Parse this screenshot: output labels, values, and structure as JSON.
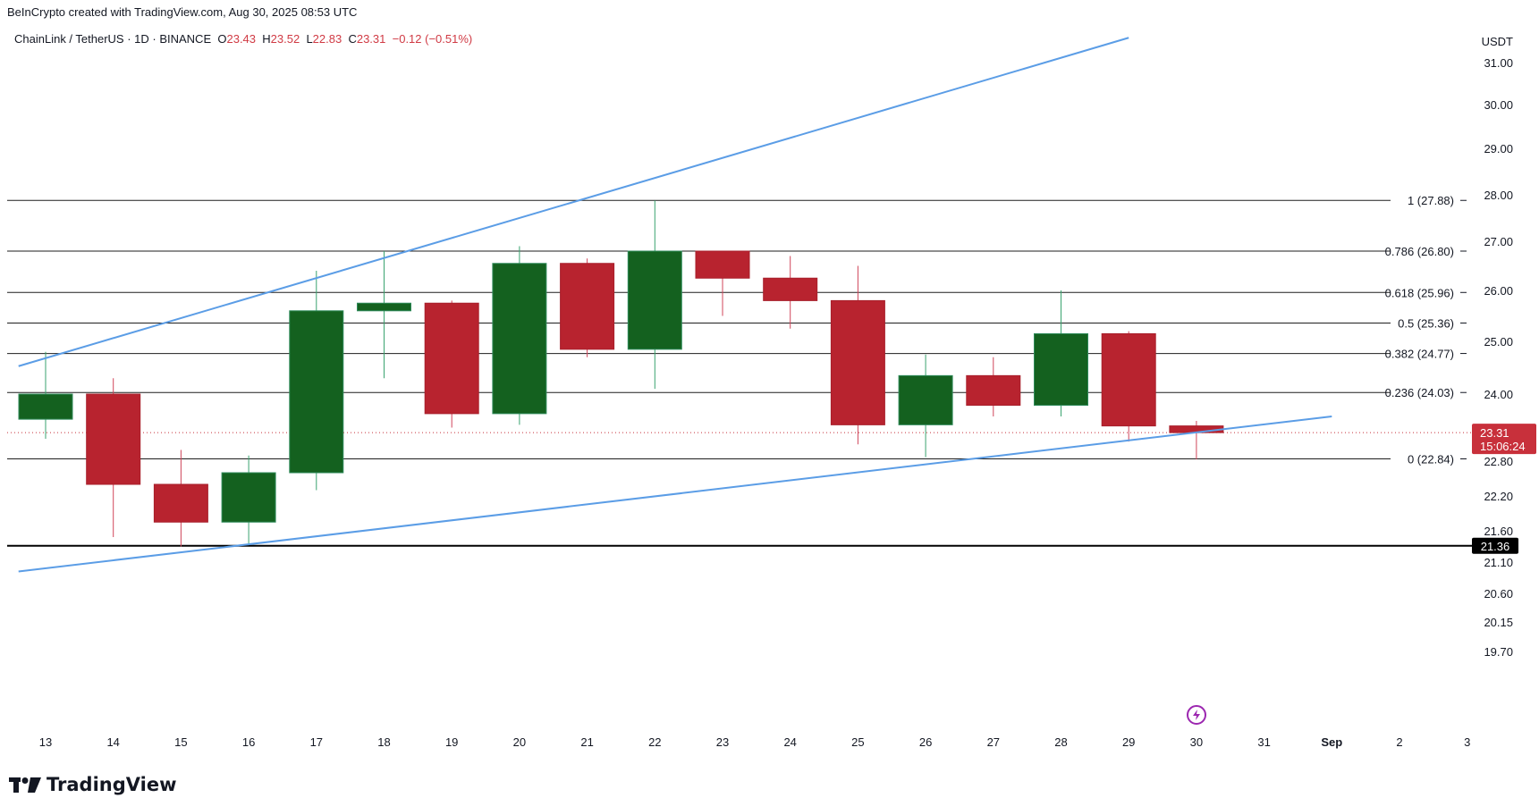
{
  "header": {
    "attribution": "BeInCrypto created with TradingView.com, Aug 30, 2025 08:53 UTC"
  },
  "legend": {
    "symbol": "ChainLink / TetherUS · 1D · BINANCE",
    "open_label": "O",
    "open_value": "23.43",
    "high_label": "H",
    "high_value": "23.52",
    "low_label": "L",
    "low_value": "22.83",
    "close_label": "C",
    "close_value": "23.31",
    "change": "−0.12 (−0.51%)"
  },
  "footer": {
    "brand": "TradingView"
  },
  "colors": {
    "up": "#14611f",
    "down": "#b8232f",
    "trendline": "#5b9de6",
    "fib_line": "#1e1e1e",
    "support_line": "#000000",
    "last_price": "#c8303b"
  },
  "chart_data": {
    "type": "candlestick",
    "currency": "USDT",
    "y_ticks": [
      "31.00",
      "30.00",
      "29.00",
      "28.00",
      "27.00",
      "26.00",
      "25.00",
      "24.00",
      "22.80",
      "22.20",
      "21.60",
      "21.10",
      "20.60",
      "20.15",
      "19.70"
    ],
    "x_ticks": [
      "13",
      "14",
      "15",
      "16",
      "17",
      "18",
      "19",
      "20",
      "21",
      "22",
      "23",
      "24",
      "25",
      "26",
      "27",
      "28",
      "29",
      "30",
      "31",
      "Sep",
      "2",
      "3"
    ],
    "candles": [
      {
        "day": "13",
        "open": 23.55,
        "high": 24.8,
        "low": 23.2,
        "close": 24.0
      },
      {
        "day": "14",
        "open": 24.0,
        "high": 24.3,
        "low": 21.5,
        "close": 22.4
      },
      {
        "day": "15",
        "open": 22.4,
        "high": 23.0,
        "low": 21.35,
        "close": 21.75
      },
      {
        "day": "16",
        "open": 21.75,
        "high": 22.9,
        "low": 21.4,
        "close": 22.6
      },
      {
        "day": "17",
        "open": 22.6,
        "high": 26.4,
        "low": 22.3,
        "close": 25.6
      },
      {
        "day": "18",
        "open": 25.6,
        "high": 26.8,
        "low": 24.3,
        "close": 25.75
      },
      {
        "day": "19",
        "open": 25.75,
        "high": 25.8,
        "low": 23.4,
        "close": 23.65
      },
      {
        "day": "20",
        "open": 23.65,
        "high": 26.9,
        "low": 23.45,
        "close": 26.55
      },
      {
        "day": "21",
        "open": 26.55,
        "high": 26.65,
        "low": 24.7,
        "close": 24.85
      },
      {
        "day": "22",
        "open": 24.85,
        "high": 27.88,
        "low": 24.1,
        "close": 26.8
      },
      {
        "day": "23",
        "open": 26.8,
        "high": 26.8,
        "low": 25.5,
        "close": 26.25
      },
      {
        "day": "24",
        "open": 26.25,
        "high": 26.7,
        "low": 25.25,
        "close": 25.8
      },
      {
        "day": "25",
        "open": 25.8,
        "high": 26.5,
        "low": 23.1,
        "close": 23.45
      },
      {
        "day": "26",
        "open": 23.45,
        "high": 24.75,
        "low": 22.87,
        "close": 24.35
      },
      {
        "day": "27",
        "open": 24.35,
        "high": 24.7,
        "low": 23.6,
        "close": 23.8
      },
      {
        "day": "28",
        "open": 23.8,
        "high": 26.0,
        "low": 23.6,
        "close": 25.15
      },
      {
        "day": "29",
        "open": 25.15,
        "high": 25.2,
        "low": 23.15,
        "close": 23.43
      },
      {
        "day": "30",
        "open": 23.43,
        "high": 23.52,
        "low": 22.83,
        "close": 23.31
      }
    ],
    "fib_levels": [
      {
        "label": "1 (27.88)",
        "value": 27.88
      },
      {
        "label": "0.786 (26.80)",
        "value": 26.8
      },
      {
        "label": "0.618 (25.96)",
        "value": 25.96
      },
      {
        "label": "0.5 (25.36)",
        "value": 25.36
      },
      {
        "label": "0.382 (24.77)",
        "value": 24.77
      },
      {
        "label": "0.236 (24.03)",
        "value": 24.03
      },
      {
        "label": "0 (22.84)",
        "value": 22.84
      }
    ],
    "support": {
      "value": 21.36,
      "label": "21.36"
    },
    "last_price": {
      "value": 23.31,
      "label": "23.31",
      "countdown": "15:06:24"
    },
    "trendlines": [
      {
        "name": "upper",
        "from": {
          "day": "12.6",
          "price": 24.53
        },
        "to": {
          "day": "29.0",
          "price": 31.59
        }
      },
      {
        "name": "lower",
        "from": {
          "day": "12.6",
          "price": 20.95
        },
        "to": {
          "day": "32.0",
          "price": 23.6
        }
      }
    ]
  }
}
